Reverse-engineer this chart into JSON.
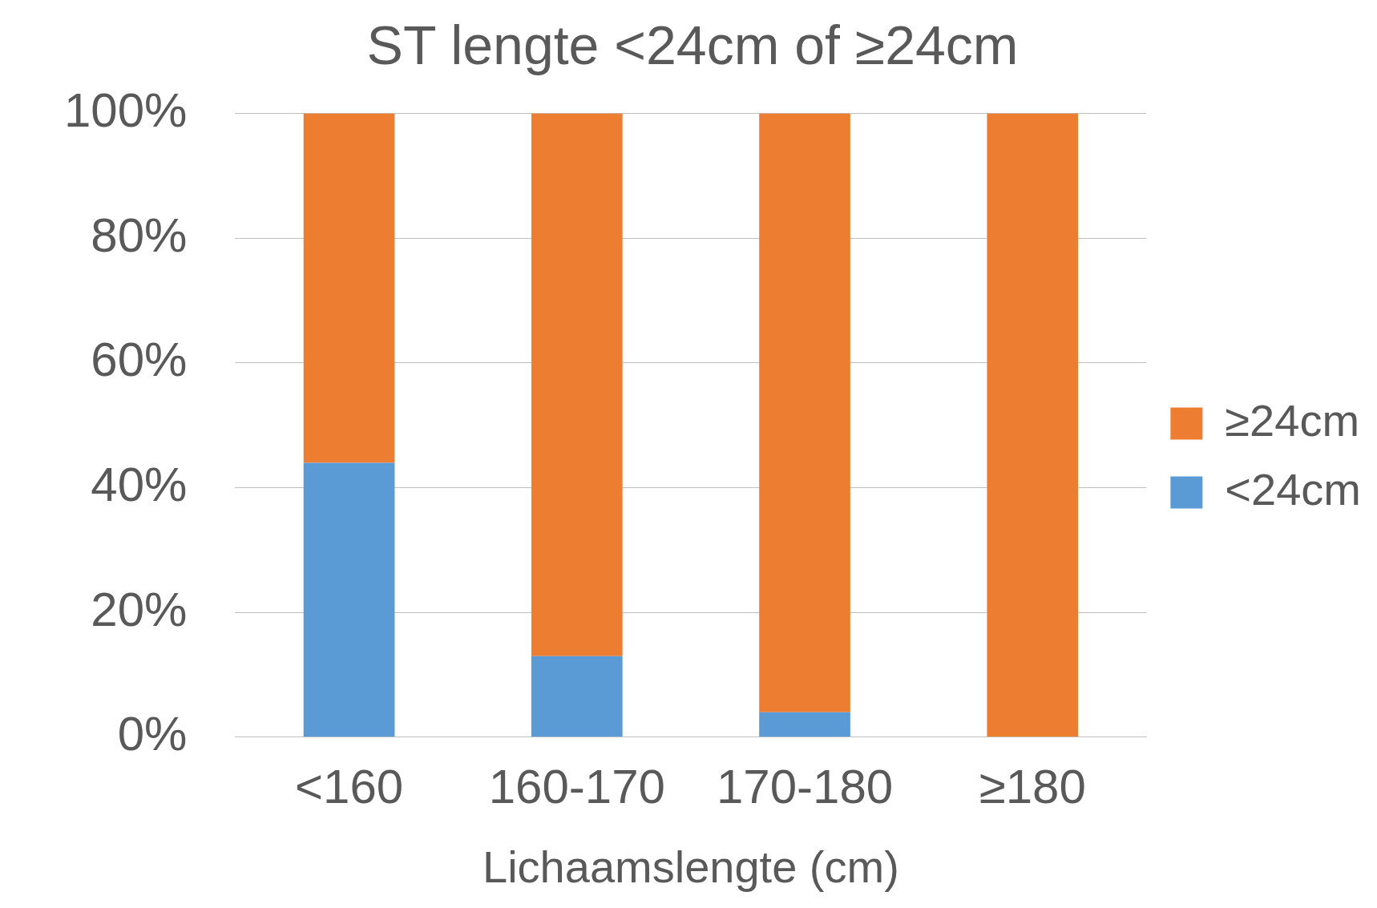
{
  "chart_data": {
    "type": "bar",
    "title": "ST lengte <24cm of ≥24cm",
    "xlabel": "Lichaamslengte (cm)",
    "categories": [
      "<160",
      "160-170",
      "170-180",
      "≥180"
    ],
    "series": [
      {
        "name": "<24cm",
        "color": "#5b9bd5",
        "values": [
          44,
          13,
          4,
          0
        ]
      },
      {
        "name": "≥24cm",
        "color": "#ed7d31",
        "values": [
          56,
          87,
          96,
          100
        ]
      }
    ],
    "stacked": true,
    "ylim": [
      0,
      100
    ],
    "yticks": [
      {
        "value": 0,
        "label": "0%"
      },
      {
        "value": 20,
        "label": "20%"
      },
      {
        "value": 40,
        "label": "40%"
      },
      {
        "value": 60,
        "label": "60%"
      },
      {
        "value": 80,
        "label": "80%"
      },
      {
        "value": 100,
        "label": "100%"
      }
    ],
    "grid": "y",
    "legend": "right"
  }
}
